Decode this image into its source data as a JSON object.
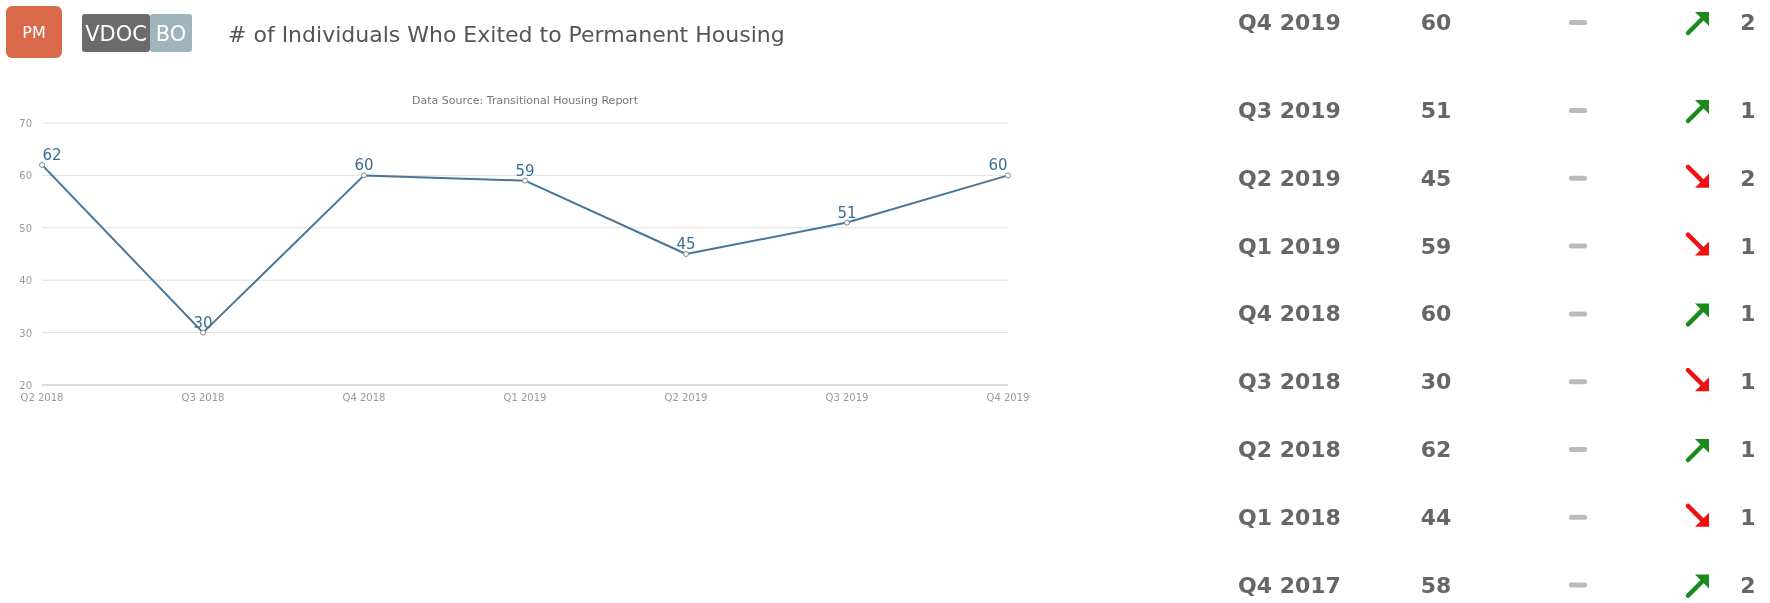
{
  "chart_data": [
    {
      "type": "line",
      "title": "# of Individuals Who Exited to Permanent Housing",
      "subtitle": "Data Source: Transitional Housing Report",
      "annotations": [
        "PM",
        "VDOC",
        "BO"
      ],
      "categories": [
        "Q2 2018",
        "Q3 2018",
        "Q4 2018",
        "Q1 2019",
        "Q2 2019",
        "Q3 2019",
        "Q4 2019"
      ],
      "series": [
        {
          "color": "#4a7597",
          "values": [
            62,
            30,
            60,
            59,
            45,
            51,
            60
          ]
        }
      ],
      "ylim": [
        20,
        70
      ],
      "yticks": [
        20,
        30,
        40,
        50,
        60,
        70
      ],
      "grid": "y",
      "marker": "circle",
      "line_style": "solid",
      "data_labels": true
    },
    {
      "type": "other",
      "data_labels": true,
      "categories": [
        "Q4 2019",
        "Q3 2019",
        "Q2 2019",
        "Q1 2019",
        "Q4 2018",
        "Q3 2018",
        "Q2 2018",
        "Q1 2018",
        "Q4 2017"
      ],
      "series": [
        {
          "values": [
            60,
            51,
            45,
            59,
            60,
            30,
            62,
            44,
            58
          ]
        },
        {
          "values": [
            2,
            1,
            2,
            1,
            1,
            1,
            1,
            1,
            2
          ],
          "colors": [
            "#1a8a1a",
            "#1a8a1a",
            "#ee1111",
            "#ee1111",
            "#1a8a1a",
            "#ee1111",
            "#1a8a1a",
            "#ee1111",
            "#1a8a1a"
          ]
        }
      ]
    }
  ]
}
